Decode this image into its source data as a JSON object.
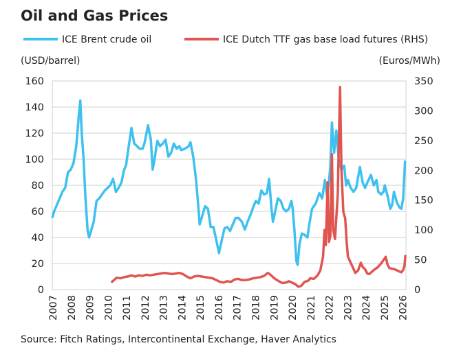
{
  "chart_data": {
    "type": "line",
    "title": "Oil and Gas Prices",
    "source": "Source: Fitch Ratings, Intercontinental Exchange, Haver Analytics",
    "ylabel": "(USD/barrel)",
    "y2label": "(Euros/MWh)",
    "ylim": [
      0,
      160
    ],
    "y2lim": [
      0,
      350
    ],
    "yticks": [
      "0",
      "20",
      "40",
      "60",
      "80",
      "100",
      "120",
      "140",
      "160"
    ],
    "y2ticks": [
      "0",
      "50",
      "100",
      "150",
      "200",
      "250",
      "300",
      "350"
    ],
    "xlim": [
      2007,
      2026.2
    ],
    "xticks": [
      "2007",
      "2008",
      "2009",
      "2010",
      "2011",
      "2012",
      "2013",
      "2014",
      "2015",
      "2016",
      "2017",
      "2018",
      "2019",
      "2020",
      "2021",
      "2022",
      "2023",
      "2024",
      "2025",
      "2026"
    ],
    "grid": true,
    "legend_position": "top",
    "series": [
      {
        "name": "ICE Brent crude oil",
        "axis": "left",
        "color": "#3ec1ee",
        "points": [
          [
            2007.0,
            55
          ],
          [
            2007.1,
            60
          ],
          [
            2007.25,
            65
          ],
          [
            2007.4,
            70
          ],
          [
            2007.55,
            75
          ],
          [
            2007.7,
            78
          ],
          [
            2007.85,
            90
          ],
          [
            2008.0,
            92
          ],
          [
            2008.15,
            97
          ],
          [
            2008.3,
            110
          ],
          [
            2008.45,
            135
          ],
          [
            2008.52,
            145
          ],
          [
            2008.6,
            120
          ],
          [
            2008.7,
            100
          ],
          [
            2008.8,
            70
          ],
          [
            2008.92,
            45
          ],
          [
            2009.0,
            40
          ],
          [
            2009.1,
            45
          ],
          [
            2009.25,
            52
          ],
          [
            2009.4,
            68
          ],
          [
            2009.55,
            70
          ],
          [
            2009.7,
            73
          ],
          [
            2009.85,
            76
          ],
          [
            2010.0,
            78
          ],
          [
            2010.15,
            80
          ],
          [
            2010.3,
            85
          ],
          [
            2010.45,
            75
          ],
          [
            2010.6,
            78
          ],
          [
            2010.75,
            82
          ],
          [
            2010.9,
            92
          ],
          [
            2011.0,
            95
          ],
          [
            2011.15,
            110
          ],
          [
            2011.3,
            124
          ],
          [
            2011.45,
            112
          ],
          [
            2011.6,
            110
          ],
          [
            2011.75,
            108
          ],
          [
            2011.9,
            108
          ],
          [
            2012.0,
            112
          ],
          [
            2012.2,
            126
          ],
          [
            2012.35,
            115
          ],
          [
            2012.45,
            92
          ],
          [
            2012.55,
            100
          ],
          [
            2012.7,
            114
          ],
          [
            2012.85,
            110
          ],
          [
            2013.0,
            112
          ],
          [
            2013.15,
            115
          ],
          [
            2013.3,
            102
          ],
          [
            2013.45,
            105
          ],
          [
            2013.6,
            112
          ],
          [
            2013.75,
            108
          ],
          [
            2013.9,
            110
          ],
          [
            2014.0,
            107
          ],
          [
            2014.2,
            108
          ],
          [
            2014.4,
            110
          ],
          [
            2014.5,
            113
          ],
          [
            2014.65,
            102
          ],
          [
            2014.8,
            85
          ],
          [
            2014.95,
            60
          ],
          [
            2015.0,
            50
          ],
          [
            2015.15,
            57
          ],
          [
            2015.3,
            64
          ],
          [
            2015.45,
            62
          ],
          [
            2015.6,
            48
          ],
          [
            2015.75,
            48
          ],
          [
            2015.9,
            38
          ],
          [
            2016.05,
            28
          ],
          [
            2016.2,
            38
          ],
          [
            2016.35,
            47
          ],
          [
            2016.5,
            48
          ],
          [
            2016.65,
            45
          ],
          [
            2016.8,
            50
          ],
          [
            2016.95,
            55
          ],
          [
            2017.1,
            55
          ],
          [
            2017.3,
            52
          ],
          [
            2017.45,
            46
          ],
          [
            2017.6,
            52
          ],
          [
            2017.75,
            57
          ],
          [
            2017.9,
            63
          ],
          [
            2018.05,
            68
          ],
          [
            2018.2,
            66
          ],
          [
            2018.35,
            76
          ],
          [
            2018.5,
            73
          ],
          [
            2018.65,
            74
          ],
          [
            2018.77,
            85
          ],
          [
            2018.9,
            62
          ],
          [
            2018.98,
            52
          ],
          [
            2019.1,
            60
          ],
          [
            2019.25,
            70
          ],
          [
            2019.4,
            68
          ],
          [
            2019.55,
            62
          ],
          [
            2019.7,
            60
          ],
          [
            2019.85,
            62
          ],
          [
            2019.98,
            68
          ],
          [
            2020.05,
            62
          ],
          [
            2020.15,
            45
          ],
          [
            2020.25,
            22
          ],
          [
            2020.32,
            19
          ],
          [
            2020.42,
            35
          ],
          [
            2020.55,
            43
          ],
          [
            2020.7,
            42
          ],
          [
            2020.85,
            40
          ],
          [
            2020.95,
            50
          ],
          [
            2021.1,
            62
          ],
          [
            2021.3,
            66
          ],
          [
            2021.5,
            74
          ],
          [
            2021.65,
            70
          ],
          [
            2021.8,
            84
          ],
          [
            2021.92,
            72
          ],
          [
            2022.0,
            80
          ],
          [
            2022.1,
            95
          ],
          [
            2022.18,
            128
          ],
          [
            2022.3,
            105
          ],
          [
            2022.42,
            122
          ],
          [
            2022.55,
            100
          ],
          [
            2022.7,
            92
          ],
          [
            2022.85,
            95
          ],
          [
            2022.95,
            80
          ],
          [
            2023.05,
            84
          ],
          [
            2023.2,
            78
          ],
          [
            2023.35,
            75
          ],
          [
            2023.5,
            78
          ],
          [
            2023.7,
            94
          ],
          [
            2023.85,
            82
          ],
          [
            2023.98,
            78
          ],
          [
            2024.1,
            82
          ],
          [
            2024.3,
            88
          ],
          [
            2024.45,
            80
          ],
          [
            2024.6,
            84
          ],
          [
            2024.7,
            75
          ],
          [
            2024.85,
            73
          ],
          [
            2024.98,
            75
          ],
          [
            2025.05,
            80
          ],
          [
            2025.2,
            72
          ],
          [
            2025.35,
            62
          ],
          [
            2025.45,
            65
          ],
          [
            2025.55,
            75
          ],
          [
            2025.7,
            67
          ],
          [
            2025.85,
            63
          ],
          [
            2025.95,
            62
          ],
          [
            2026.05,
            70
          ],
          [
            2026.15,
            99
          ]
        ]
      },
      {
        "name": "ICE Dutch TTF gas base load futures (RHS)",
        "axis": "right",
        "color": "#e05550",
        "points": [
          [
            2010.2,
            12
          ],
          [
            2010.35,
            16
          ],
          [
            2010.5,
            20
          ],
          [
            2010.7,
            19
          ],
          [
            2010.9,
            21
          ],
          [
            2011.1,
            22
          ],
          [
            2011.3,
            24
          ],
          [
            2011.5,
            22
          ],
          [
            2011.7,
            24
          ],
          [
            2011.9,
            23
          ],
          [
            2012.1,
            25
          ],
          [
            2012.3,
            24
          ],
          [
            2012.5,
            25
          ],
          [
            2012.7,
            26
          ],
          [
            2012.9,
            27
          ],
          [
            2013.1,
            28
          ],
          [
            2013.3,
            27
          ],
          [
            2013.5,
            26
          ],
          [
            2013.7,
            27
          ],
          [
            2013.9,
            28
          ],
          [
            2014.1,
            26
          ],
          [
            2014.3,
            22
          ],
          [
            2014.5,
            19
          ],
          [
            2014.7,
            22
          ],
          [
            2014.9,
            23
          ],
          [
            2015.1,
            22
          ],
          [
            2015.3,
            21
          ],
          [
            2015.5,
            20
          ],
          [
            2015.7,
            19
          ],
          [
            2015.9,
            16
          ],
          [
            2016.1,
            13
          ],
          [
            2016.3,
            12
          ],
          [
            2016.5,
            14
          ],
          [
            2016.7,
            13
          ],
          [
            2016.9,
            17
          ],
          [
            2017.1,
            18
          ],
          [
            2017.3,
            16
          ],
          [
            2017.5,
            16
          ],
          [
            2017.7,
            17
          ],
          [
            2017.9,
            19
          ],
          [
            2018.1,
            20
          ],
          [
            2018.3,
            21
          ],
          [
            2018.5,
            23
          ],
          [
            2018.7,
            28
          ],
          [
            2018.8,
            26
          ],
          [
            2018.95,
            22
          ],
          [
            2019.1,
            18
          ],
          [
            2019.3,
            14
          ],
          [
            2019.5,
            11
          ],
          [
            2019.7,
            12
          ],
          [
            2019.85,
            14
          ],
          [
            2020.0,
            12
          ],
          [
            2020.2,
            9
          ],
          [
            2020.35,
            5
          ],
          [
            2020.5,
            6
          ],
          [
            2020.7,
            13
          ],
          [
            2020.9,
            15
          ],
          [
            2021.0,
            19
          ],
          [
            2021.2,
            18
          ],
          [
            2021.4,
            24
          ],
          [
            2021.55,
            32
          ],
          [
            2021.7,
            55
          ],
          [
            2021.78,
            100
          ],
          [
            2021.85,
            75
          ],
          [
            2021.95,
            180
          ],
          [
            2022.02,
            80
          ],
          [
            2022.1,
            90
          ],
          [
            2022.18,
            227
          ],
          [
            2022.25,
            100
          ],
          [
            2022.35,
            85
          ],
          [
            2022.5,
            160
          ],
          [
            2022.62,
            340
          ],
          [
            2022.7,
            200
          ],
          [
            2022.8,
            130
          ],
          [
            2022.9,
            120
          ],
          [
            2022.98,
            80
          ],
          [
            2023.05,
            55
          ],
          [
            2023.2,
            45
          ],
          [
            2023.35,
            35
          ],
          [
            2023.45,
            28
          ],
          [
            2023.6,
            32
          ],
          [
            2023.75,
            45
          ],
          [
            2023.85,
            38
          ],
          [
            2023.98,
            34
          ],
          [
            2024.1,
            27
          ],
          [
            2024.2,
            26
          ],
          [
            2024.35,
            30
          ],
          [
            2024.5,
            34
          ],
          [
            2024.65,
            37
          ],
          [
            2024.8,
            42
          ],
          [
            2024.95,
            48
          ],
          [
            2025.1,
            55
          ],
          [
            2025.2,
            42
          ],
          [
            2025.3,
            36
          ],
          [
            2025.45,
            35
          ],
          [
            2025.6,
            34
          ],
          [
            2025.8,
            31
          ],
          [
            2025.95,
            29
          ],
          [
            2026.05,
            33
          ],
          [
            2026.12,
            40
          ],
          [
            2026.17,
            58
          ]
        ]
      }
    ]
  }
}
